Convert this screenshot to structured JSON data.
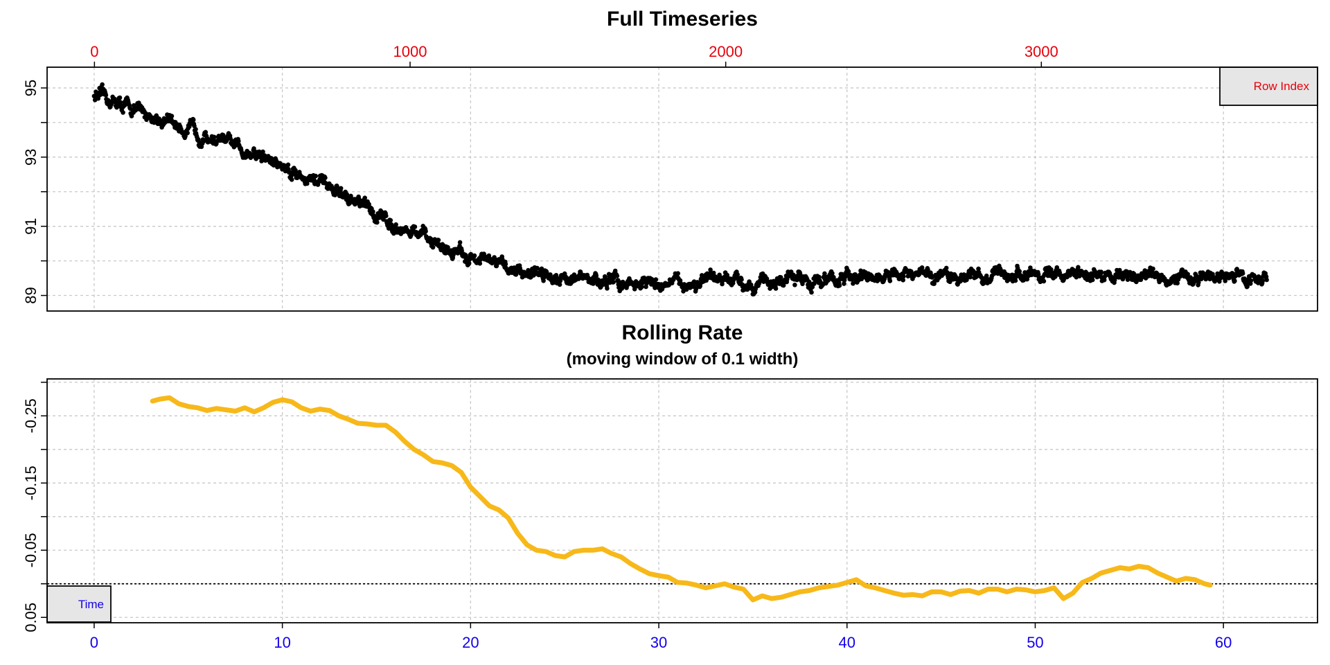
{
  "colors": {
    "timeseries": "#000000",
    "rolling": "#F7B819",
    "row_axis": "#E8000B",
    "time_axis": "#1400E8",
    "legend_fill": "#E6E6E6",
    "grid": "#C8C8C8"
  },
  "chart_data": [
    {
      "type": "scatter",
      "title": "Full Timeseries",
      "xlabel": "",
      "ylabel": "",
      "top_axis": {
        "label": "Row Index",
        "ticks": [
          "0",
          "1000",
          "2000",
          "3000"
        ],
        "range": [
          -150,
          3875
        ]
      },
      "bottom_axis": {
        "label": "Time",
        "range": [
          -2.5,
          65
        ]
      },
      "ylim": [
        88.55,
        95.6
      ],
      "y_ticks": [
        "89",
        "91",
        "93",
        "95"
      ],
      "grid": true,
      "legend": {
        "position": "top-right",
        "entries": [
          "Row Index"
        ]
      },
      "series": [
        {
          "x": [
            0,
            1,
            2,
            3,
            4,
            5,
            6,
            7,
            8,
            9,
            10,
            11,
            12,
            13,
            14,
            15,
            16,
            17,
            18,
            19,
            20,
            21,
            22,
            23,
            24,
            25,
            26,
            27,
            28,
            29,
            30,
            31,
            32,
            33,
            34,
            35,
            36,
            37,
            38,
            39,
            40,
            41,
            42,
            43,
            44,
            45,
            46,
            47,
            48,
            49,
            50,
            51,
            52,
            53,
            54,
            55,
            56,
            57,
            58,
            59,
            60,
            61,
            62.3
          ],
          "values": [
            94.8,
            94.6,
            94.4,
            94.2,
            94.0,
            93.8,
            93.6,
            93.4,
            93.2,
            93.0,
            92.75,
            92.5,
            92.25,
            91.95,
            91.65,
            91.35,
            91.05,
            90.8,
            90.55,
            90.3,
            90.1,
            89.95,
            89.8,
            89.7,
            89.65,
            89.55,
            89.45,
            89.4,
            89.4,
            89.35,
            89.35,
            89.35,
            89.35,
            89.4,
            89.4,
            89.4,
            89.4,
            89.45,
            89.45,
            89.45,
            89.5,
            89.5,
            89.5,
            89.55,
            89.55,
            89.55,
            89.55,
            89.6,
            89.6,
            89.6,
            89.6,
            89.6,
            89.6,
            89.6,
            89.6,
            89.55,
            89.55,
            89.55,
            89.5,
            89.5,
            89.55,
            89.55,
            89.5
          ],
          "noise": 0.22
        }
      ]
    },
    {
      "type": "line",
      "title": "Rolling Rate",
      "subtitle": "(moving window of 0.1 width)",
      "xlabel": "",
      "ylabel": "",
      "x_ticks": [
        "0",
        "10",
        "20",
        "30",
        "40",
        "50",
        "60"
      ],
      "xlim": [
        -2.5,
        65
      ],
      "y_ticks": [
        "-0.25",
        "-0.15",
        "-0.05",
        "0.05"
      ],
      "y_tick_values": [
        -0.25,
        -0.15,
        -0.05,
        0.05
      ],
      "ylim": [
        -0.305,
        0.058
      ],
      "reference_line": 0.0,
      "grid": true,
      "legend": {
        "position": "bottom-left",
        "entries": [
          "Time"
        ]
      },
      "series": [
        {
          "x": [
            3.1,
            3.5,
            4.0,
            4.5,
            5.0,
            5.5,
            6.0,
            6.5,
            7.0,
            7.5,
            8.0,
            8.5,
            9.0,
            9.5,
            10.0,
            10.5,
            11.0,
            11.5,
            12.0,
            12.5,
            13.0,
            13.5,
            14.0,
            14.5,
            15.0,
            15.5,
            16.0,
            16.5,
            17.0,
            17.5,
            18.0,
            18.5,
            19.0,
            19.5,
            20.0,
            20.5,
            21.0,
            21.5,
            22.0,
            22.5,
            23.0,
            23.5,
            24.0,
            24.5,
            25.0,
            25.5,
            26.0,
            26.5,
            27.0,
            27.5,
            28.0,
            28.5,
            29.0,
            29.5,
            30.0,
            30.5,
            31.0,
            31.5,
            32.0,
            32.5,
            33.0,
            33.5,
            34.0,
            34.5,
            35.0,
            35.5,
            36.0,
            36.5,
            37.0,
            37.5,
            38.0,
            38.5,
            39.0,
            39.5,
            40.0,
            40.5,
            41.0,
            41.5,
            42.0,
            42.5,
            43.0,
            43.5,
            44.0,
            44.5,
            45.0,
            45.5,
            46.0,
            46.5,
            47.0,
            47.5,
            48.0,
            48.5,
            49.0,
            49.5,
            50.0,
            50.5,
            51.0,
            51.5,
            52.0,
            52.5,
            53.0,
            53.5,
            54.0,
            54.5,
            55.0,
            55.5,
            56.0,
            56.5,
            57.0,
            57.5,
            58.0,
            58.5,
            59.0,
            59.3
          ],
          "values": [
            -0.272,
            -0.275,
            -0.277,
            -0.268,
            -0.264,
            -0.262,
            -0.258,
            -0.261,
            -0.259,
            -0.257,
            -0.262,
            -0.256,
            -0.262,
            -0.27,
            -0.274,
            -0.271,
            -0.262,
            -0.257,
            -0.26,
            -0.258,
            -0.25,
            -0.245,
            -0.239,
            -0.238,
            -0.236,
            -0.236,
            -0.226,
            -0.212,
            -0.2,
            -0.192,
            -0.182,
            -0.18,
            -0.176,
            -0.166,
            -0.144,
            -0.13,
            -0.116,
            -0.11,
            -0.098,
            -0.075,
            -0.058,
            -0.05,
            -0.048,
            -0.042,
            -0.04,
            -0.048,
            -0.05,
            -0.05,
            -0.052,
            -0.045,
            -0.04,
            -0.03,
            -0.022,
            -0.015,
            -0.012,
            -0.01,
            -0.002,
            -0.001,
            0.002,
            0.006,
            0.003,
            0.0,
            0.005,
            0.008,
            0.024,
            0.018,
            0.022,
            0.02,
            0.016,
            0.012,
            0.01,
            0.006,
            0.004,
            0.002,
            -0.002,
            -0.006,
            0.003,
            0.006,
            0.01,
            0.014,
            0.017,
            0.016,
            0.018,
            0.012,
            0.012,
            0.016,
            0.011,
            0.01,
            0.014,
            0.008,
            0.008,
            0.012,
            0.008,
            0.009,
            0.012,
            0.01,
            0.006,
            0.022,
            0.014,
            -0.002,
            -0.008,
            -0.016,
            -0.02,
            -0.024,
            -0.022,
            -0.026,
            -0.024,
            -0.016,
            -0.01,
            -0.004,
            -0.008,
            -0.006,
            0.0,
            0.002
          ]
        }
      ]
    }
  ]
}
